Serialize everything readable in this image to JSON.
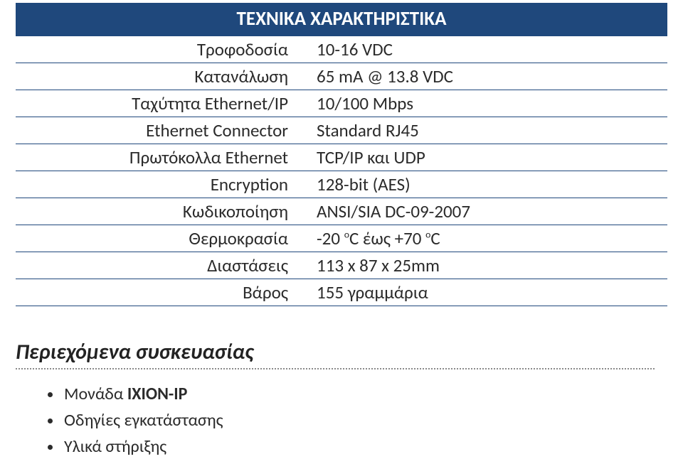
{
  "spec": {
    "heading": "ΤΕΧΝΙΚΑ ΧΑΡΑΚΤΗΡΙΣΤΙΚΑ",
    "rows": [
      {
        "key": "Τροφοδοσία",
        "val": "10-16 VDC"
      },
      {
        "key": "Κατανάλωση",
        "val": "65 mA @ 13.8 VDC"
      },
      {
        "key": "Ταχύτητα Ethernet/IP",
        "val": "10/100 Mbps"
      },
      {
        "key": "Ethernet Connector",
        "val": "Standard RJ45"
      },
      {
        "key": "Πρωτόκολλα Ethernet",
        "val": "TCP/IP και UDP"
      },
      {
        "key": "Encryption",
        "val": "128-bit (AES)"
      },
      {
        "key": "Κωδικοποίηση",
        "val": "ANSI/SIA DC-09-2007"
      },
      {
        "key": "Θερμοκρασία",
        "val": "-20 °C έως +70 °C"
      },
      {
        "key": "Διαστάσεις",
        "val": "113 x 87 x 25mm"
      },
      {
        "key": "Βάρος",
        "val": "155 γραμμάρια"
      }
    ]
  },
  "package": {
    "title": "Περιεχόμενα συσκευασίας",
    "items": [
      {
        "prefix": "Μονάδα ",
        "bold": "IXION-IP"
      },
      {
        "text": "Οδηγίες εγκατάστασης"
      },
      {
        "text": "Υλικά στήριξης"
      }
    ]
  }
}
